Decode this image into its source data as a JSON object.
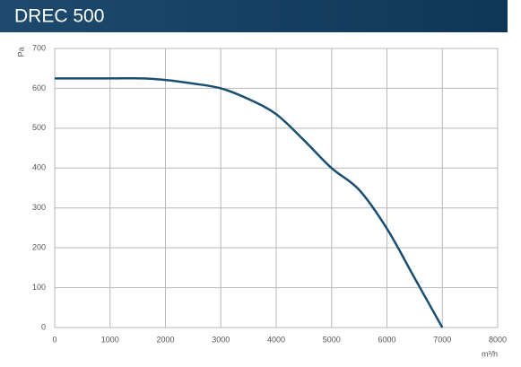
{
  "chart_data": {
    "type": "line",
    "title": "DREC 500",
    "x_label": "m³/h",
    "y_label": "Pa",
    "x": [
      0,
      1000,
      1600,
      2000,
      2500,
      3000,
      3500,
      4000,
      4500,
      5000,
      5500,
      6000,
      6500,
      7000
    ],
    "series": [
      {
        "name": "DREC 500",
        "color": "#1b4f72",
        "values": [
          625,
          625,
          625,
          621,
          612,
          600,
          573,
          535,
          470,
          400,
          345,
          248,
          124,
          0
        ]
      }
    ],
    "xlim": [
      0,
      8000
    ],
    "xticks": [
      0,
      1000,
      2000,
      3000,
      4000,
      5000,
      6000,
      7000,
      8000
    ],
    "ylim": [
      0,
      700
    ],
    "yticks": [
      0,
      100,
      200,
      300,
      400,
      500,
      600,
      700
    ],
    "grid": true
  }
}
